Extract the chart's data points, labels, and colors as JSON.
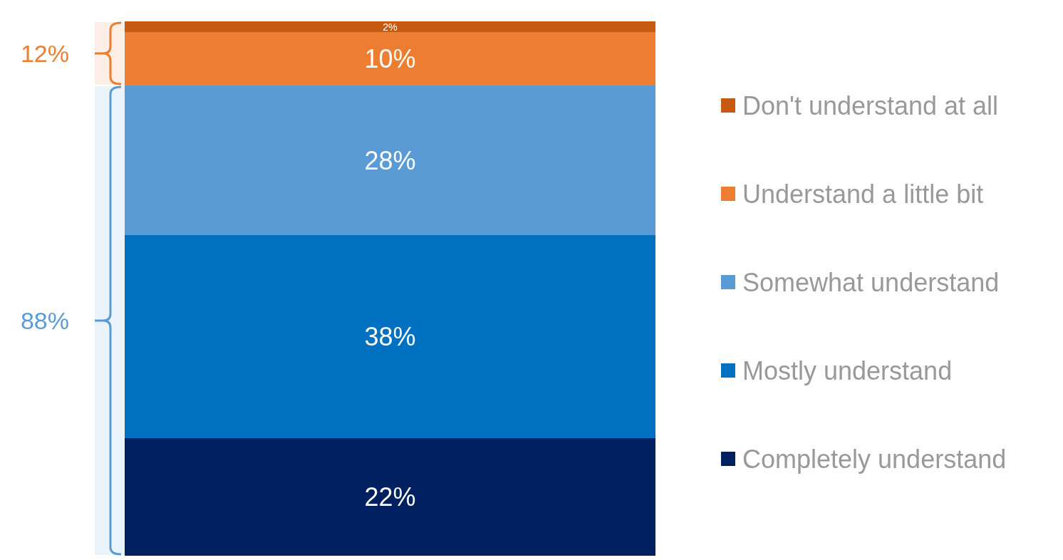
{
  "chart_data": {
    "type": "bar",
    "stacked": true,
    "categories": [
      null
    ],
    "series": [
      {
        "name": "Completely understand",
        "color": "#002060",
        "values": [
          22
        ],
        "value_labels": [
          "22%"
        ]
      },
      {
        "name": "Mostly understand",
        "color": "#0070c0",
        "values": [
          38
        ],
        "value_labels": [
          "38%"
        ]
      },
      {
        "name": "Somewhat understand",
        "color": "#5b9bd5",
        "values": [
          28
        ],
        "value_labels": [
          "28%"
        ]
      },
      {
        "name": "Understand a little bit",
        "color": "#ed7d31",
        "values": [
          10
        ],
        "value_labels": [
          "10%"
        ]
      },
      {
        "name": "Don't understand at all",
        "color": "#c55a11",
        "values": [
          2
        ],
        "value_labels": [
          "2%"
        ]
      }
    ],
    "legend": "right",
    "bands": [
      {
        "axis": "y",
        "from": 88,
        "to": 100,
        "label": "12%",
        "color": "#ed7d31"
      },
      {
        "axis": "y",
        "from": 0,
        "to": 88,
        "label": "88%",
        "color": "#5b9bd5"
      }
    ]
  }
}
